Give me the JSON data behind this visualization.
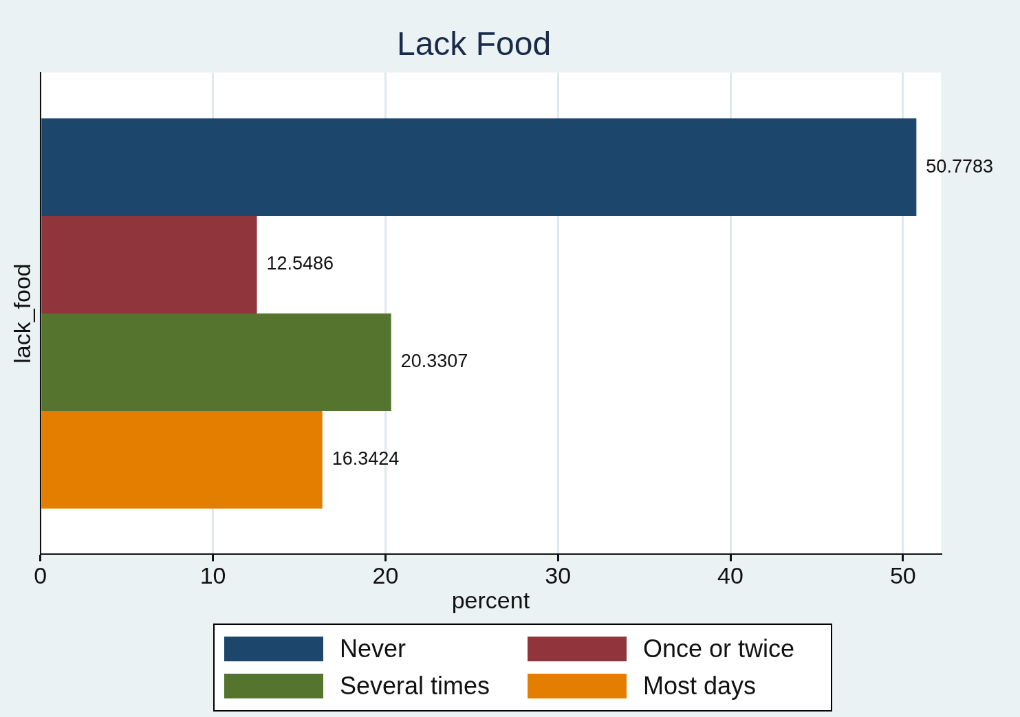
{
  "chart_data": {
    "type": "bar",
    "orientation": "horizontal",
    "title": "Lack Food",
    "xlabel": "percent",
    "ylabel": "lack_food",
    "categories": [
      null
    ],
    "series": [
      {
        "name": "Never",
        "color": "#1c466c",
        "values": [
          50.7783
        ]
      },
      {
        "name": "Once or twice",
        "color": "#90353b",
        "values": [
          12.5486
        ]
      },
      {
        "name": "Several times",
        "color": "#55752f",
        "values": [
          20.3307
        ]
      },
      {
        "name": "Most days",
        "color": "#e37e00",
        "values": [
          16.3424
        ]
      }
    ],
    "xlim": [
      0,
      52.2
    ],
    "xticks": [
      0,
      10,
      20,
      30,
      40,
      50
    ],
    "grid": "x",
    "legend": "bottom",
    "tick_labels": "x",
    "data_labels": true
  }
}
